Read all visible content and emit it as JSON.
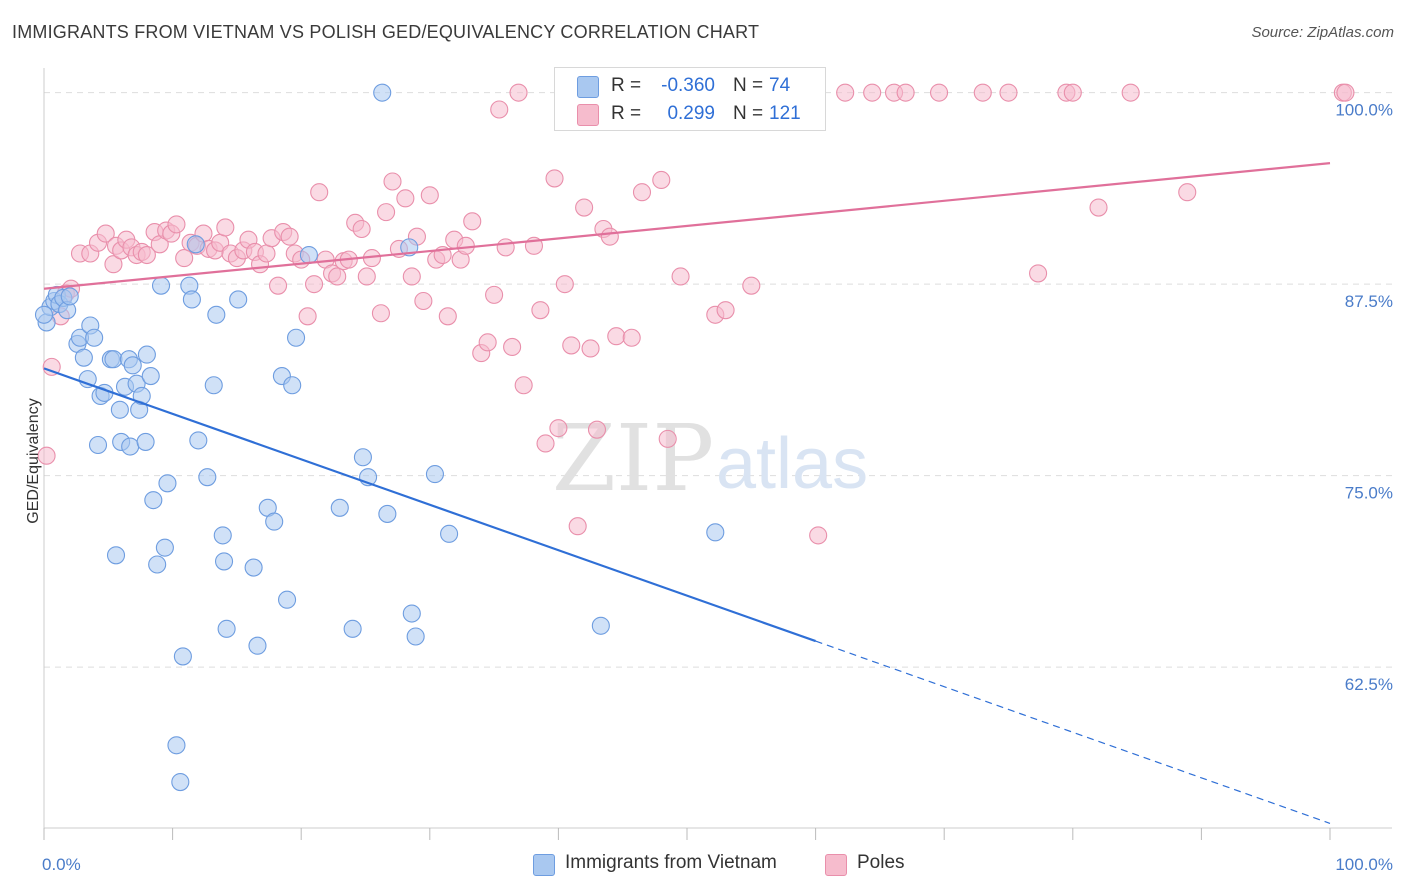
{
  "title": "IMMIGRANTS FROM VIETNAM VS POLISH GED/EQUIVALENCY CORRELATION CHART",
  "source": "Source: ZipAtlas.com",
  "watermark": {
    "part1": "ZIP",
    "part2": "atlas"
  },
  "stats": {
    "rows": [
      {
        "r_label": "R =",
        "r_value": "-0.360",
        "n_label": "N =",
        "n_value": "74"
      },
      {
        "r_label": "R =",
        "r_value": "0.299",
        "n_label": "N =",
        "n_value": "121"
      }
    ]
  },
  "legend": {
    "items": [
      {
        "label": "Immigrants from Vietnam"
      },
      {
        "label": "Poles"
      }
    ]
  },
  "colors": {
    "blue_fill": "#a9c8f0",
    "blue_stroke": "#6e9de0",
    "blue_line": "#2f6fd6",
    "pink_fill": "#f6bccd",
    "pink_stroke": "#e98fab",
    "pink_line": "#e0709a",
    "grid": "#dddddd",
    "tick_text": "#4a7cc9"
  },
  "chart_data": {
    "type": "scatter",
    "title": "IMMIGRANTS FROM VIETNAM VS POLISH GED/EQUIVALENCY CORRELATION CHART",
    "xlabel": "",
    "ylabel": "GED/Equivalency",
    "xlim": [
      0,
      100
    ],
    "ylim": [
      52,
      102
    ],
    "x_tick_labels": [
      "0.0%",
      "100.0%"
    ],
    "y_ticks": [
      62.5,
      75.0,
      87.5,
      100.0
    ],
    "y_tick_labels": [
      "62.5%",
      "75.0%",
      "87.5%",
      "100.0%"
    ],
    "grid": true,
    "legend_position": "bottom",
    "series": [
      {
        "name": "Immigrants from Vietnam",
        "color": "#6e9de0",
        "trend": {
          "x0": 0,
          "y0": 82.0,
          "x1": 60,
          "y1": 64.2,
          "dashed_to": [
            100,
            52.3
          ]
        },
        "points": [
          [
            0.2,
            85.0
          ],
          [
            0.5,
            86.0
          ],
          [
            0.8,
            86.4
          ],
          [
            1.0,
            86.8
          ],
          [
            1.2,
            86.2
          ],
          [
            1.5,
            86.6
          ],
          [
            1.8,
            85.8
          ],
          [
            2.0,
            86.7
          ],
          [
            2.6,
            83.6
          ],
          [
            2.8,
            84.0
          ],
          [
            3.1,
            82.7
          ],
          [
            3.4,
            81.3
          ],
          [
            3.6,
            84.8
          ],
          [
            3.9,
            84.0
          ],
          [
            4.2,
            77.0
          ],
          [
            4.4,
            80.2
          ],
          [
            4.7,
            80.4
          ],
          [
            5.2,
            82.6
          ],
          [
            5.4,
            82.6
          ],
          [
            5.6,
            69.8
          ],
          [
            5.9,
            79.3
          ],
          [
            6.0,
            77.2
          ],
          [
            6.3,
            80.8
          ],
          [
            6.6,
            82.6
          ],
          [
            6.7,
            76.9
          ],
          [
            6.9,
            82.2
          ],
          [
            7.2,
            81.0
          ],
          [
            7.4,
            79.3
          ],
          [
            7.6,
            80.2
          ],
          [
            7.9,
            77.2
          ],
          [
            8.0,
            82.9
          ],
          [
            8.3,
            81.5
          ],
          [
            8.5,
            73.4
          ],
          [
            8.8,
            69.2
          ],
          [
            9.1,
            87.4
          ],
          [
            9.4,
            70.3
          ],
          [
            9.6,
            74.5
          ],
          [
            10.3,
            57.4
          ],
          [
            10.6,
            55.0
          ],
          [
            10.8,
            63.2
          ],
          [
            11.3,
            87.4
          ],
          [
            11.5,
            86.5
          ],
          [
            11.8,
            90.1
          ],
          [
            12.0,
            77.3
          ],
          [
            12.7,
            74.9
          ],
          [
            13.2,
            80.9
          ],
          [
            13.4,
            85.5
          ],
          [
            13.9,
            71.1
          ],
          [
            14.0,
            69.4
          ],
          [
            14.2,
            65.0
          ],
          [
            15.1,
            86.5
          ],
          [
            16.3,
            69.0
          ],
          [
            16.6,
            63.9
          ],
          [
            17.4,
            72.9
          ],
          [
            17.9,
            72.0
          ],
          [
            18.5,
            81.5
          ],
          [
            18.9,
            66.9
          ],
          [
            19.3,
            80.9
          ],
          [
            19.6,
            84.0
          ],
          [
            20.6,
            89.4
          ],
          [
            23.0,
            72.9
          ],
          [
            24.0,
            65.0
          ],
          [
            24.8,
            76.2
          ],
          [
            25.2,
            74.9
          ],
          [
            26.3,
            100.0
          ],
          [
            26.7,
            72.5
          ],
          [
            28.4,
            89.9
          ],
          [
            28.6,
            66.0
          ],
          [
            28.9,
            64.5
          ],
          [
            30.4,
            75.1
          ],
          [
            31.5,
            71.2
          ],
          [
            43.3,
            65.2
          ],
          [
            52.2,
            71.3
          ],
          [
            0.0,
            85.5
          ]
        ]
      },
      {
        "name": "Poles",
        "color": "#e98fab",
        "trend": {
          "x0": 0,
          "y0": 87.2,
          "x1": 100,
          "y1": 95.4
        },
        "points": [
          [
            0.2,
            76.3
          ],
          [
            0.6,
            82.1
          ],
          [
            1.3,
            85.4
          ],
          [
            1.7,
            86.9
          ],
          [
            2.1,
            87.2
          ],
          [
            2.8,
            89.5
          ],
          [
            3.6,
            89.5
          ],
          [
            4.2,
            90.2
          ],
          [
            4.8,
            90.8
          ],
          [
            5.4,
            88.8
          ],
          [
            5.6,
            90.0
          ],
          [
            6.0,
            89.7
          ],
          [
            6.4,
            90.4
          ],
          [
            6.8,
            89.9
          ],
          [
            7.2,
            89.4
          ],
          [
            7.6,
            89.6
          ],
          [
            8.0,
            89.4
          ],
          [
            8.6,
            90.9
          ],
          [
            9.0,
            90.1
          ],
          [
            9.5,
            91.0
          ],
          [
            9.9,
            90.8
          ],
          [
            10.3,
            91.4
          ],
          [
            10.9,
            89.2
          ],
          [
            11.4,
            90.2
          ],
          [
            11.9,
            90.0
          ],
          [
            12.4,
            90.8
          ],
          [
            12.8,
            89.8
          ],
          [
            13.3,
            89.7
          ],
          [
            13.7,
            90.2
          ],
          [
            14.1,
            91.2
          ],
          [
            14.5,
            89.5
          ],
          [
            15.0,
            89.2
          ],
          [
            15.5,
            89.7
          ],
          [
            15.9,
            90.4
          ],
          [
            16.4,
            89.6
          ],
          [
            16.8,
            88.8
          ],
          [
            17.3,
            89.5
          ],
          [
            17.7,
            90.5
          ],
          [
            18.2,
            87.4
          ],
          [
            18.6,
            90.9
          ],
          [
            19.1,
            90.6
          ],
          [
            19.5,
            89.5
          ],
          [
            20.0,
            89.1
          ],
          [
            20.5,
            85.4
          ],
          [
            21.0,
            87.5
          ],
          [
            21.4,
            93.5
          ],
          [
            21.9,
            89.1
          ],
          [
            22.4,
            88.2
          ],
          [
            22.8,
            88.0
          ],
          [
            23.3,
            89.0
          ],
          [
            23.7,
            89.1
          ],
          [
            24.2,
            91.5
          ],
          [
            24.7,
            91.1
          ],
          [
            25.1,
            88.0
          ],
          [
            25.5,
            89.2
          ],
          [
            26.2,
            85.6
          ],
          [
            26.6,
            92.2
          ],
          [
            27.1,
            94.2
          ],
          [
            27.6,
            89.8
          ],
          [
            28.1,
            93.1
          ],
          [
            28.6,
            88.0
          ],
          [
            29.0,
            90.6
          ],
          [
            29.5,
            86.4
          ],
          [
            30.0,
            93.3
          ],
          [
            30.5,
            89.1
          ],
          [
            31.0,
            89.4
          ],
          [
            31.4,
            85.4
          ],
          [
            31.9,
            90.4
          ],
          [
            32.4,
            89.1
          ],
          [
            32.8,
            90.0
          ],
          [
            33.3,
            91.6
          ],
          [
            34.0,
            83.0
          ],
          [
            34.5,
            83.7
          ],
          [
            35.0,
            86.8
          ],
          [
            35.4,
            98.9
          ],
          [
            35.9,
            89.9
          ],
          [
            36.4,
            83.4
          ],
          [
            36.9,
            100.0
          ],
          [
            37.3,
            80.9
          ],
          [
            38.1,
            90.0
          ],
          [
            38.6,
            85.8
          ],
          [
            39.0,
            77.1
          ],
          [
            39.7,
            94.4
          ],
          [
            40.0,
            78.1
          ],
          [
            40.5,
            87.5
          ],
          [
            41.0,
            83.5
          ],
          [
            41.5,
            71.7
          ],
          [
            42.0,
            92.5
          ],
          [
            42.5,
            83.3
          ],
          [
            43.0,
            78.0
          ],
          [
            43.5,
            91.1
          ],
          [
            44.0,
            90.6
          ],
          [
            44.5,
            84.1
          ],
          [
            45.0,
            100.0
          ],
          [
            45.7,
            84.0
          ],
          [
            46.5,
            93.5
          ],
          [
            47.5,
            100.0
          ],
          [
            48.0,
            94.3
          ],
          [
            48.5,
            77.4
          ],
          [
            49.5,
            88.0
          ],
          [
            50.0,
            100.0
          ],
          [
            52.2,
            85.5
          ],
          [
            53.0,
            85.8
          ],
          [
            55.0,
            87.4
          ],
          [
            56.5,
            100.0
          ],
          [
            60.2,
            71.1
          ],
          [
            62.3,
            100.0
          ],
          [
            64.4,
            100.0
          ],
          [
            66.1,
            100.0
          ],
          [
            67.0,
            100.0
          ],
          [
            69.6,
            100.0
          ],
          [
            73.0,
            100.0
          ],
          [
            75.0,
            100.0
          ],
          [
            77.3,
            88.2
          ],
          [
            79.5,
            100.0
          ],
          [
            80.0,
            100.0
          ],
          [
            82.0,
            92.5
          ],
          [
            84.5,
            100.0
          ],
          [
            88.9,
            93.5
          ],
          [
            101.0,
            100.0
          ],
          [
            101.2,
            100.0
          ]
        ]
      }
    ]
  }
}
